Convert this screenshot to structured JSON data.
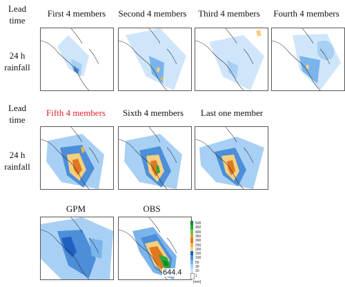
{
  "row_headers": {
    "lead_time_1": "Lead\ntime",
    "rainfall_1": "24 h\nrainfall",
    "lead_time_2": "Lead\ntime",
    "rainfall_2": "24 h\nrainfall"
  },
  "panels_row1": [
    {
      "title": "First 4 members",
      "highlight": false
    },
    {
      "title": "Second 4 members",
      "highlight": false
    },
    {
      "title": "Third 4 members",
      "highlight": false
    },
    {
      "title": "Fourth 4 members",
      "highlight": false
    }
  ],
  "panels_row2": [
    {
      "title": "Fifth 4 members",
      "highlight": true,
      "highlight_color": "#e0202a"
    },
    {
      "title": "Sixth 4 members",
      "highlight": false
    },
    {
      "title": "Last one member",
      "highlight": false
    }
  ],
  "panels_row3": [
    {
      "title": "GPM"
    },
    {
      "title": "OBS"
    }
  ],
  "obs_max_label": "644.4",
  "legend": {
    "levels": [
      "500",
      "450",
      "400",
      "350",
      "300",
      "250",
      "200",
      "150",
      "100",
      "50",
      "30",
      "10",
      "1"
    ],
    "colors": [
      "#0a8a2a",
      "#2aa83a",
      "#5ec85a",
      "#d8a020",
      "#e07820",
      "#f0b050",
      "#f5d080",
      "#2060c0",
      "#4c8ed8",
      "#7ab4ec",
      "#a8d0f4",
      "#cfe6fa",
      "#ffffff"
    ],
    "unit": "[mm]"
  }
}
